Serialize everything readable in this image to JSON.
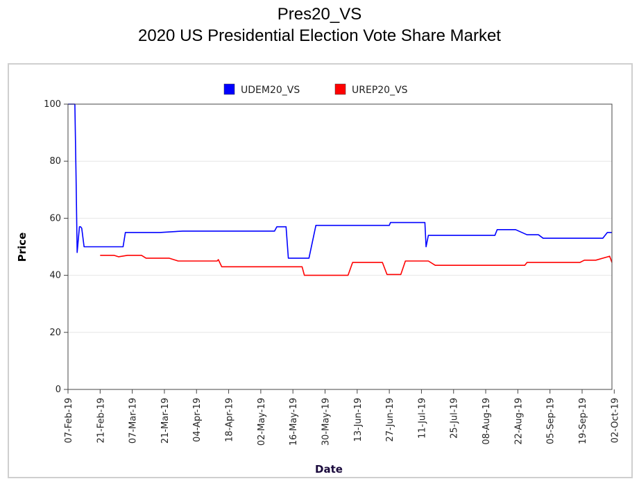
{
  "chart_data": {
    "type": "line",
    "title": "Pres20_VS",
    "subtitle": "2020 US Presidential Election Vote Share Market",
    "xlabel": "Date",
    "ylabel": "Price",
    "ylim": [
      0,
      100
    ],
    "yticks": [
      "0",
      "20",
      "40",
      "60",
      "80",
      "100"
    ],
    "x_tick_labels": [
      "07-Feb-19",
      "21-Feb-19",
      "07-Mar-19",
      "21-Mar-19",
      "04-Apr-19",
      "18-Apr-19",
      "02-May-19",
      "16-May-19",
      "30-May-19",
      "13-Jun-19",
      "27-Jun-19",
      "11-Jul-19",
      "25-Jul-19",
      "08-Aug-19",
      "22-Aug-19",
      "05-Sep-19",
      "19-Sep-19",
      "02-Oct-19"
    ],
    "x_range_days": [
      0,
      237
    ],
    "legend_position": "top-center",
    "series": [
      {
        "name": "UDEM20_VS",
        "color": "#0000ff",
        "x": [
          0,
          3,
          3.5,
          4,
          5,
          5.5,
          6,
          7,
          10,
          13.5,
          24,
          25,
          27,
          40,
          50,
          60,
          70,
          80,
          90,
          91,
          93,
          95,
          96,
          100,
          102,
          105,
          108,
          120,
          130,
          140,
          140.5,
          145,
          155,
          155.5,
          156,
          157,
          160,
          180,
          186,
          187,
          195,
          200,
          205,
          207,
          213,
          233,
          235,
          237
        ],
        "y": [
          100,
          100,
          75,
          48,
          57,
          57,
          56.5,
          50,
          50,
          50,
          50,
          55,
          55,
          55,
          55.5,
          55.5,
          55.5,
          55.5,
          55.5,
          57,
          57,
          57,
          46,
          46,
          46,
          46,
          57.5,
          57.5,
          57.5,
          57.5,
          58.5,
          58.5,
          58.5,
          58.5,
          50,
          54,
          54,
          54,
          54,
          56,
          56,
          54.2,
          54.2,
          53,
          53,
          53,
          55,
          55
        ]
      },
      {
        "name": "UREP20_VS",
        "color": "#ff0000",
        "x": [
          14,
          20,
          22,
          26,
          32,
          34,
          44,
          48,
          55,
          65,
          65.5,
          67,
          70,
          80,
          90,
          102,
          103,
          110,
          122,
          124,
          137,
          139,
          145,
          147,
          155,
          157,
          160,
          170,
          190,
          199,
          200,
          210,
          215,
          223,
          225,
          230,
          236,
          237
        ],
        "y": [
          47,
          47,
          46.5,
          47,
          47,
          46,
          46,
          45,
          45,
          45,
          45.5,
          43,
          43,
          43,
          43,
          43,
          40,
          40,
          40,
          44.5,
          44.5,
          40.3,
          40.3,
          45,
          45,
          45,
          43.5,
          43.5,
          43.5,
          43.5,
          44.5,
          44.5,
          44.5,
          44.5,
          45.3,
          45.3,
          46.7,
          44.5
        ]
      }
    ]
  }
}
